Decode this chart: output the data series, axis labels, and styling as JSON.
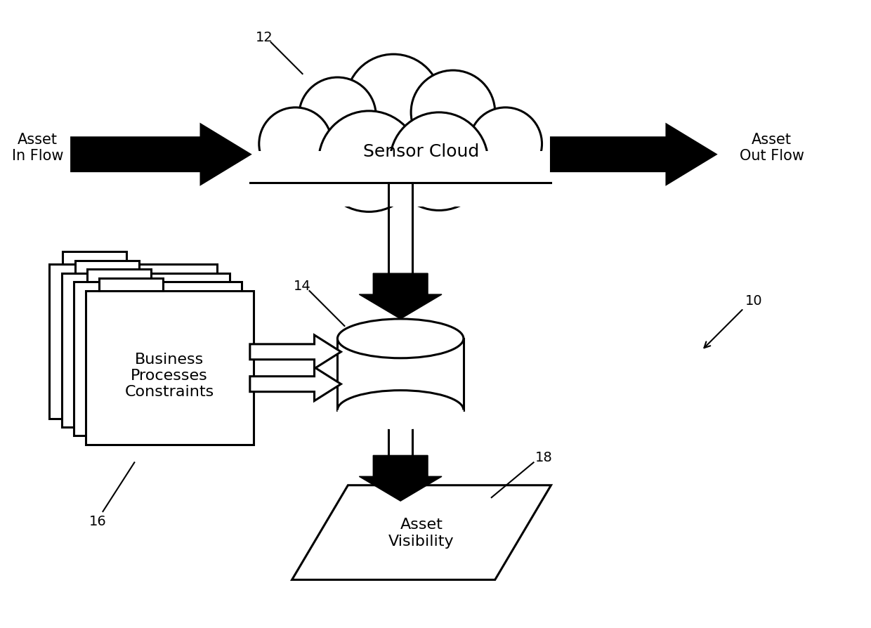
{
  "bg_color": "#ffffff",
  "line_color": "#000000",
  "line_width": 2.2,
  "font_family": "DejaVu Sans",
  "labels": {
    "sensor_cloud": "Sensor Cloud",
    "asset_in_flow": "Asset\nIn Flow",
    "asset_out_flow": "Asset\nOut Flow",
    "business": "Business\nProcesses\nConstraints",
    "asset_visibility": "Asset\nVisibility",
    "num_10": "10",
    "num_12": "12",
    "num_14": "14",
    "num_16": "16",
    "num_18": "18"
  },
  "font_sizes": {
    "main_label": 18,
    "sub_label": 15,
    "numbers": 14
  }
}
